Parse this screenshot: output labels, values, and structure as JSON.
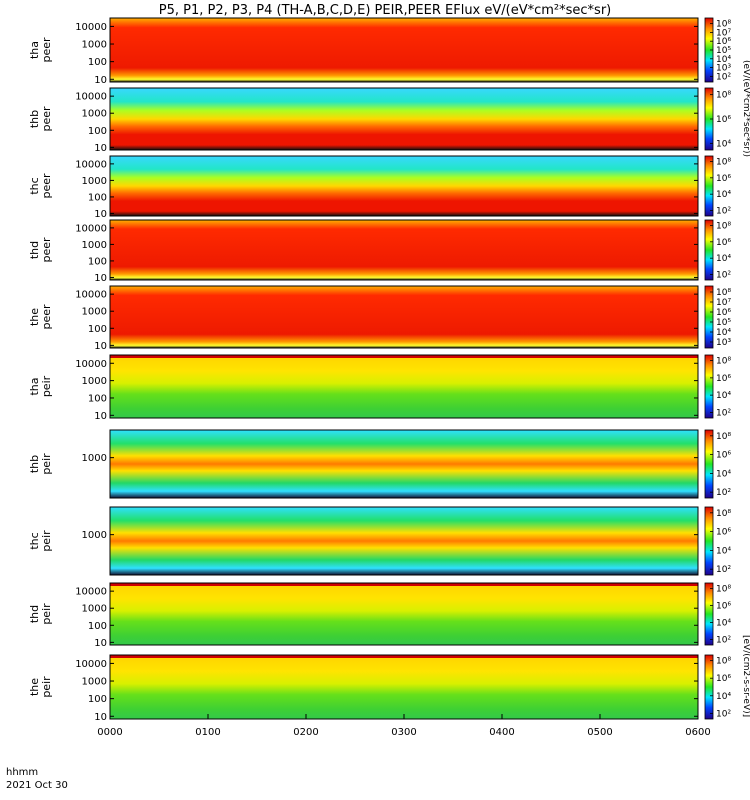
{
  "title": "P5, P1, P2, P3, P4 (TH-A,B,C,D,E) PEIR,PEER EFlux eV/(eV*cm²*sec*sr)",
  "colorbar_label_electron": "(eV/(eV*cm2*sec*sr))",
  "colorbar_label_ion": "[eV/(cm2-s-sr-eV)]",
  "footer": {
    "x_axis_name": "hhmm",
    "date": "2021 Oct 30"
  },
  "chart_data": {
    "type": "heatmap",
    "x_tick_labels": [
      "0000",
      "0100",
      "0200",
      "0300",
      "0400",
      "0500",
      "0600"
    ],
    "x_range": [
      "00:00",
      "06:00"
    ],
    "y_scale": "log",
    "colormap": "rainbow (dark blue to red)",
    "panels": [
      {
        "probe": "tha",
        "species": "peer",
        "y_label": "tha\npeer",
        "y_ticks": [
          "10",
          "100",
          "1000",
          "10000"
        ],
        "y_range_eV": [
          7,
          30000
        ],
        "cbar_ticks": [
          "10²",
          "10³",
          "10⁴",
          "10⁵",
          "10⁶",
          "10⁷",
          "10⁸"
        ]
      },
      {
        "probe": "thb",
        "species": "peer",
        "y_label": "thb\npeer",
        "y_ticks": [
          "10",
          "100",
          "1000",
          "10000"
        ],
        "y_range_eV": [
          7,
          30000
        ],
        "cbar_ticks": [
          "10⁴",
          "10⁶",
          "10⁸"
        ]
      },
      {
        "probe": "thc",
        "species": "peer",
        "y_label": "thc\npeer",
        "y_ticks": [
          "10",
          "100",
          "1000",
          "10000"
        ],
        "y_range_eV": [
          7,
          30000
        ],
        "cbar_ticks": [
          "10²",
          "10⁴",
          "10⁶",
          "10⁸"
        ]
      },
      {
        "probe": "thd",
        "species": "peer",
        "y_label": "thd\npeer",
        "y_ticks": [
          "10",
          "100",
          "1000",
          "10000"
        ],
        "y_range_eV": [
          7,
          30000
        ],
        "cbar_ticks": [
          "10²",
          "10⁴",
          "10⁶",
          "10⁸"
        ]
      },
      {
        "probe": "the",
        "species": "peer",
        "y_label": "the\npeer",
        "y_ticks": [
          "10",
          "100",
          "1000",
          "10000"
        ],
        "y_range_eV": [
          7,
          30000
        ],
        "cbar_ticks": [
          "10³",
          "10⁴",
          "10⁵",
          "10⁶",
          "10⁷",
          "10⁸"
        ]
      },
      {
        "probe": "tha",
        "species": "peir",
        "y_label": "tha\npeir",
        "y_ticks": [
          "10",
          "100",
          "1000",
          "10000"
        ],
        "y_range_eV": [
          7,
          30000
        ],
        "cbar_ticks": [
          "10²",
          "10⁴",
          "10⁶",
          "10⁸"
        ]
      },
      {
        "probe": "thb",
        "species": "peir",
        "y_label": "thb\npeir",
        "y_ticks": [
          "1000"
        ],
        "y_range_eV": [
          7,
          30000
        ],
        "cbar_ticks": [
          "10²",
          "10⁴",
          "10⁶",
          "10⁸"
        ]
      },
      {
        "probe": "thc",
        "species": "peir",
        "y_label": "thc\npeir",
        "y_ticks": [
          "1000"
        ],
        "y_range_eV": [
          7,
          30000
        ],
        "cbar_ticks": [
          "10²",
          "10⁴",
          "10⁶",
          "10⁸"
        ]
      },
      {
        "probe": "thd",
        "species": "peir",
        "y_label": "thd\npeir",
        "y_ticks": [
          "10",
          "100",
          "1000",
          "10000"
        ],
        "y_range_eV": [
          7,
          30000
        ],
        "cbar_ticks": [
          "10²",
          "10⁴",
          "10⁶",
          "10⁸"
        ]
      },
      {
        "probe": "the",
        "species": "peir",
        "y_label": "the\npeir",
        "y_ticks": [
          "10",
          "100",
          "1000",
          "10000"
        ],
        "y_range_eV": [
          7,
          30000
        ],
        "cbar_ticks": [
          "10²",
          "10⁴",
          "10⁶",
          "10⁸"
        ]
      }
    ]
  }
}
